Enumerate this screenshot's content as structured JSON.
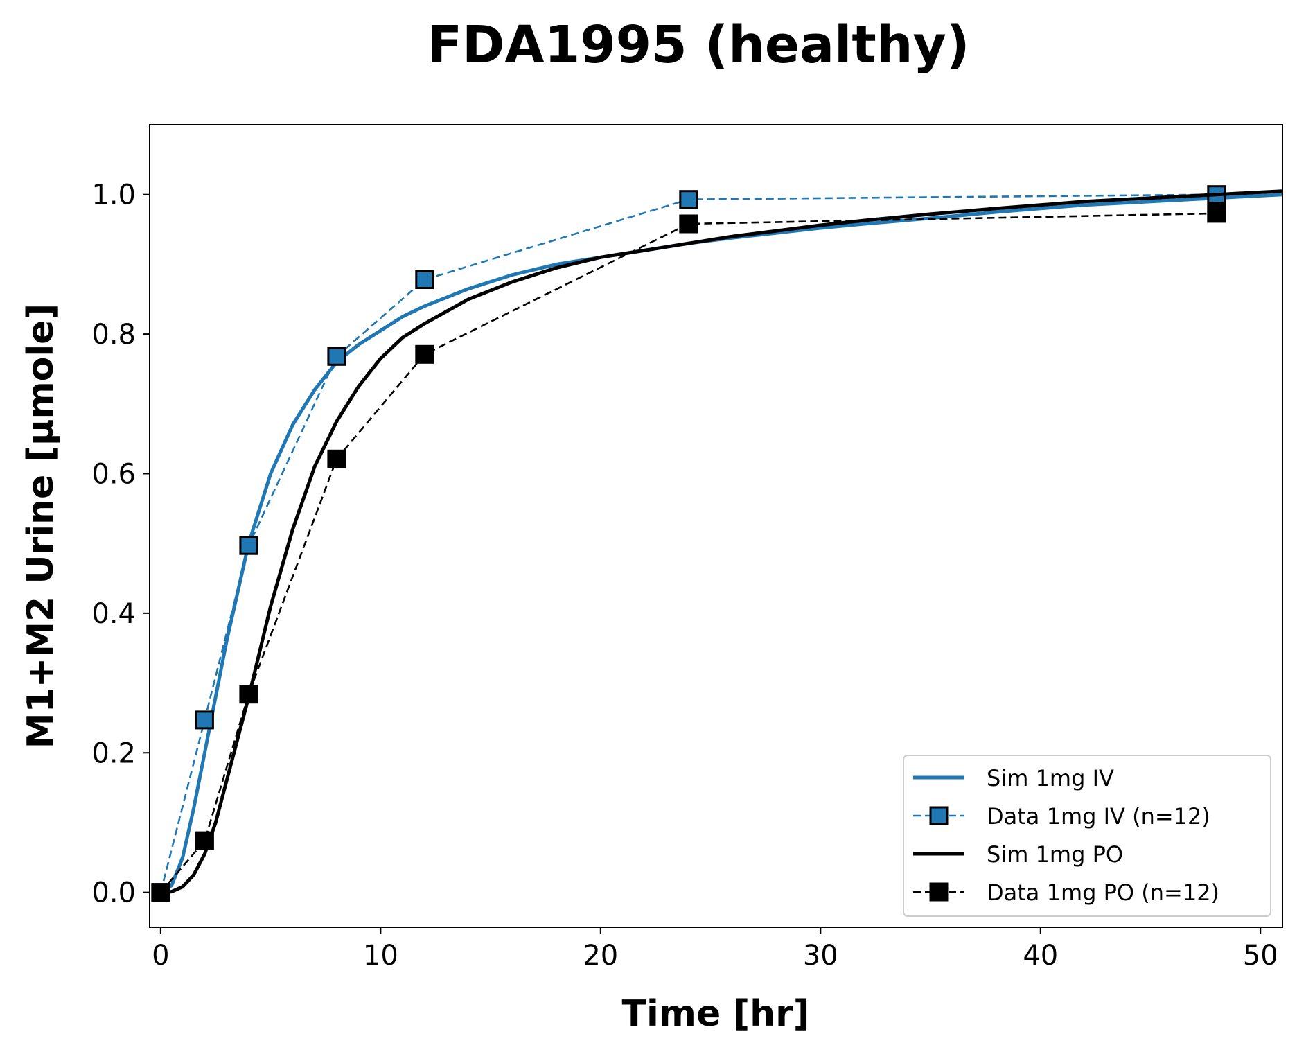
{
  "chart_data": {
    "type": "line",
    "title": "FDA1995 (healthy)",
    "xlabel": "Time [hr]",
    "ylabel": "M1+M2 Urine [µmole]",
    "xlim": [
      -0.5,
      51
    ],
    "ylim": [
      -0.05,
      1.1
    ],
    "x_ticks": [
      0,
      10,
      20,
      30,
      40,
      50
    ],
    "x_tick_labels": [
      "0",
      "10",
      "20",
      "30",
      "40",
      "50"
    ],
    "y_ticks": [
      0.0,
      0.2,
      0.4,
      0.6,
      0.8,
      1.0
    ],
    "y_tick_labels": [
      "0.0",
      "0.2",
      "0.4",
      "0.6",
      "0.8",
      "1.0"
    ],
    "grid": false,
    "legend_position": "bottom-right",
    "series": [
      {
        "name": "Sim 1mg IV",
        "style": "solid",
        "marker": "none",
        "color": "#1f77b4",
        "x": [
          0,
          0.5,
          1,
          1.5,
          2,
          2.5,
          3,
          3.5,
          4,
          5,
          6,
          7,
          8,
          9,
          10,
          11,
          12,
          14,
          16,
          18,
          20,
          22,
          24,
          26,
          28,
          30,
          32,
          35,
          38,
          40,
          42,
          45,
          48,
          51
        ],
        "y": [
          0,
          0.01,
          0.05,
          0.12,
          0.2,
          0.28,
          0.36,
          0.43,
          0.5,
          0.6,
          0.67,
          0.72,
          0.76,
          0.785,
          0.805,
          0.825,
          0.84,
          0.865,
          0.885,
          0.9,
          0.91,
          0.92,
          0.93,
          0.938,
          0.945,
          0.952,
          0.958,
          0.966,
          0.975,
          0.98,
          0.985,
          0.99,
          0.995,
          1.0
        ]
      },
      {
        "name": "Data 1mg IV (n=12)",
        "style": "dashed",
        "marker": "square",
        "color": "#1f77b4",
        "x": [
          0,
          2,
          4,
          8,
          12,
          24,
          48
        ],
        "y": [
          0.0,
          0.247,
          0.497,
          0.768,
          0.878,
          0.993,
          1.0
        ]
      },
      {
        "name": "Sim 1mg PO",
        "style": "solid",
        "marker": "none",
        "color": "#000000",
        "x": [
          0,
          0.5,
          1,
          1.5,
          2,
          2.5,
          3,
          3.5,
          4,
          5,
          6,
          7,
          8,
          9,
          10,
          11,
          12,
          14,
          16,
          18,
          20,
          22,
          24,
          26,
          28,
          30,
          32,
          35,
          38,
          40,
          42,
          45,
          48,
          51
        ],
        "y": [
          0,
          0.001,
          0.008,
          0.025,
          0.055,
          0.1,
          0.16,
          0.22,
          0.28,
          0.41,
          0.52,
          0.61,
          0.675,
          0.725,
          0.765,
          0.795,
          0.815,
          0.85,
          0.875,
          0.895,
          0.91,
          0.92,
          0.93,
          0.94,
          0.948,
          0.956,
          0.963,
          0.972,
          0.98,
          0.985,
          0.99,
          0.995,
          1.0,
          1.005
        ]
      },
      {
        "name": "Data 1mg PO (n=12)",
        "style": "dashed",
        "marker": "square",
        "color": "#000000",
        "x": [
          0,
          2,
          4,
          8,
          12,
          24,
          48
        ],
        "y": [
          0.0,
          0.074,
          0.284,
          0.621,
          0.771,
          0.958,
          0.973
        ]
      }
    ]
  }
}
